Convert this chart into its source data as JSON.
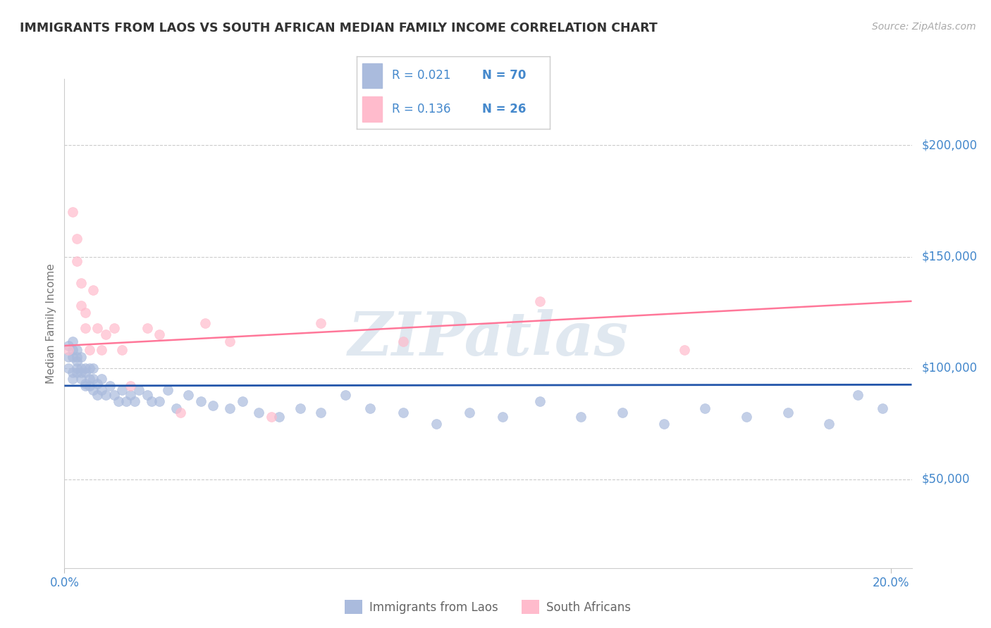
{
  "title": "IMMIGRANTS FROM LAOS VS SOUTH AFRICAN MEDIAN FAMILY INCOME CORRELATION CHART",
  "source": "Source: ZipAtlas.com",
  "ylabel": "Median Family Income",
  "xlim": [
    0.0,
    0.205
  ],
  "ylim": [
    10000,
    230000
  ],
  "yticks": [
    50000,
    100000,
    150000,
    200000
  ],
  "ytick_labels": [
    "$50,000",
    "$100,000",
    "$150,000",
    "$200,000"
  ],
  "xticks": [
    0.0,
    0.2
  ],
  "xtick_labels": [
    "0.0%",
    "20.0%"
  ],
  "bg_color": "#ffffff",
  "grid_color": "#cccccc",
  "blue_dot_color": "#aabbdd",
  "pink_dot_color": "#ffbbcc",
  "blue_line_color": "#2255aa",
  "pink_line_color": "#ff7799",
  "tick_label_color": "#4488cc",
  "title_color": "#333333",
  "source_color": "#aaaaaa",
  "watermark_text": "ZIPatlas",
  "watermark_color": "#e0e8f0",
  "ylabel_color": "#777777",
  "legend_R1": "R = 0.021",
  "legend_N1": "N = 70",
  "legend_R2": "R = 0.136",
  "legend_N2": "N = 26",
  "legend_text_color": "#4488cc",
  "series1_label": "Immigrants from Laos",
  "series2_label": "South Africans",
  "blue_x": [
    0.001,
    0.001,
    0.001,
    0.002,
    0.002,
    0.002,
    0.002,
    0.002,
    0.003,
    0.003,
    0.003,
    0.003,
    0.003,
    0.004,
    0.004,
    0.004,
    0.004,
    0.005,
    0.005,
    0.005,
    0.005,
    0.006,
    0.006,
    0.006,
    0.007,
    0.007,
    0.007,
    0.008,
    0.008,
    0.009,
    0.009,
    0.01,
    0.011,
    0.012,
    0.013,
    0.014,
    0.015,
    0.016,
    0.017,
    0.018,
    0.02,
    0.021,
    0.023,
    0.025,
    0.027,
    0.03,
    0.033,
    0.036,
    0.04,
    0.043,
    0.047,
    0.052,
    0.057,
    0.062,
    0.068,
    0.074,
    0.082,
    0.09,
    0.098,
    0.106,
    0.115,
    0.125,
    0.135,
    0.145,
    0.155,
    0.165,
    0.175,
    0.185,
    0.192,
    0.198
  ],
  "blue_y": [
    105000,
    100000,
    110000,
    98000,
    105000,
    108000,
    112000,
    95000,
    100000,
    105000,
    108000,
    98000,
    103000,
    95000,
    100000,
    105000,
    98000,
    92000,
    98000,
    100000,
    93000,
    95000,
    100000,
    92000,
    90000,
    95000,
    100000,
    88000,
    93000,
    90000,
    95000,
    88000,
    92000,
    88000,
    85000,
    90000,
    85000,
    88000,
    85000,
    90000,
    88000,
    85000,
    85000,
    90000,
    82000,
    88000,
    85000,
    83000,
    82000,
    85000,
    80000,
    78000,
    82000,
    80000,
    88000,
    82000,
    80000,
    75000,
    80000,
    78000,
    85000,
    78000,
    80000,
    75000,
    82000,
    78000,
    80000,
    75000,
    88000,
    82000
  ],
  "pink_x": [
    0.001,
    0.002,
    0.003,
    0.003,
    0.004,
    0.004,
    0.005,
    0.005,
    0.006,
    0.007,
    0.008,
    0.009,
    0.01,
    0.012,
    0.014,
    0.016,
    0.02,
    0.023,
    0.028,
    0.034,
    0.04,
    0.05,
    0.062,
    0.082,
    0.115,
    0.15
  ],
  "pink_y": [
    108000,
    170000,
    148000,
    158000,
    128000,
    138000,
    118000,
    125000,
    108000,
    135000,
    118000,
    108000,
    115000,
    118000,
    108000,
    92000,
    118000,
    115000,
    80000,
    120000,
    112000,
    78000,
    120000,
    112000,
    130000,
    108000
  ],
  "blue_trend_x": [
    0.0,
    0.205
  ],
  "blue_trend_y": [
    92000,
    92500
  ],
  "pink_trend_x": [
    0.0,
    0.205
  ],
  "pink_trend_y": [
    110000,
    130000
  ],
  "dot_size": 100,
  "dot_alpha": 0.7
}
